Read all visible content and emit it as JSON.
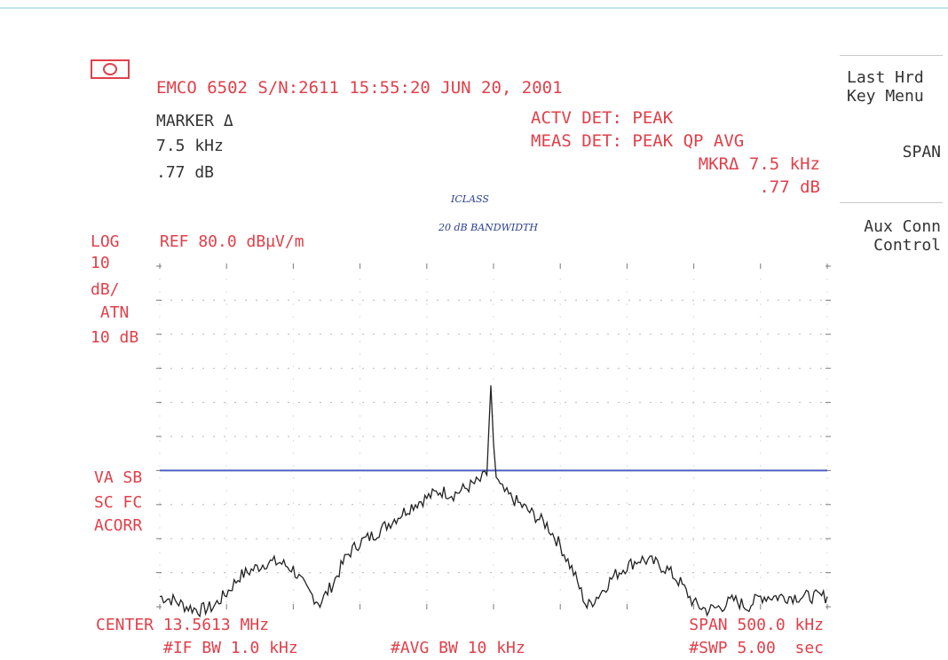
{
  "header": {
    "title": "EMCO 6502 S/N:2611 15:55:20 JUN 20, 2001",
    "marker": [
      "MARKER Δ",
      "7.5 kHz",
      ".77 dB"
    ],
    "actv_det": "ACTV DET: PEAK",
    "meas_det": "MEAS DET: PEAK QP AVG",
    "mkr_freq": "MKRΔ 7.5 kHz",
    "mkr_amp": ".77 dB"
  },
  "softkeys": {
    "last_hrd": [
      "Last Hrd",
      "Key Menu"
    ],
    "span": "SPAN",
    "aux": [
      "Aux Conn",
      "Control"
    ]
  },
  "annotations": {
    "handwriting_1": "ICLASS",
    "handwriting_2": "20 dB BANDWIDTH"
  },
  "left_panel": {
    "scale": [
      "LOG",
      "10",
      "dB/",
      " ATN",
      "10 dB"
    ],
    "ref": "REF 80.0 dBµV/m",
    "modes": [
      "VA SB",
      "SC FC",
      "ACORR"
    ]
  },
  "footer": {
    "center": "CENTER 13.5613 MHz",
    "if_bw": "#IF BW 1.0 kHz",
    "avg_bw": "#AVG BW 10 kHz",
    "span": "SPAN 500.0 kHz",
    "swp": "#SWP 5.00  sec"
  },
  "colors": {
    "annotation_red": "#e0404a",
    "trace": "#222222",
    "limit_line": "#5060c0",
    "handwriting": "#2a3f8f"
  },
  "chart_data": {
    "type": "line",
    "title": "",
    "xlabel": "",
    "ylabel": "",
    "center_mhz": 13.5613,
    "span_khz": 500.0,
    "x_unit": "kHz offset from center",
    "xlim": [
      -250,
      250
    ],
    "y_unit": "dBµV/m",
    "ylim": [
      -20,
      80
    ],
    "y_divisions": 10,
    "x_divisions": 10,
    "grid": true,
    "limit_line_dbuv": 20,
    "marker_delta": {
      "freq_khz": 7.5,
      "amp_db": 0.77
    },
    "series": [
      {
        "x": [
          -250,
          -240,
          -230,
          -220,
          -210,
          -200,
          -190,
          -180,
          -170,
          -160,
          -150,
          -140,
          -130,
          -120,
          -110,
          -100,
          -90,
          -80,
          -70,
          -60,
          -50,
          -40,
          -30,
          -20,
          -10,
          -5,
          -2,
          0,
          2,
          5,
          10,
          20,
          30,
          40,
          50,
          60,
          70,
          80,
          90,
          100,
          110,
          120,
          130,
          140,
          150,
          160,
          170,
          180,
          190,
          200,
          210,
          220,
          230,
          240,
          250
        ],
        "y": [
          -17,
          -18,
          -20,
          -21,
          -20,
          -16,
          -11,
          -9,
          -7,
          -7,
          -9,
          -15,
          -19,
          -13,
          -5,
          -1,
          1,
          4,
          7,
          10,
          12,
          14,
          13,
          15,
          17,
          19,
          45,
          28,
          18,
          15,
          13,
          10,
          7,
          4,
          -2,
          -10,
          -20,
          -16,
          -11,
          -8,
          -6,
          -7,
          -9,
          -13,
          -19,
          -21,
          -20,
          -18,
          -20,
          -17,
          -17,
          -17,
          -17,
          -17,
          -17
        ]
      }
    ]
  }
}
